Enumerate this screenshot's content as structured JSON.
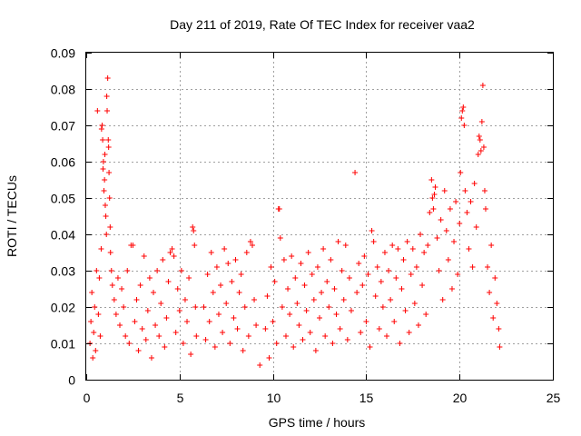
{
  "chart_data": {
    "type": "scatter",
    "title": "Day 211 of 2019, Rate Of TEC Index for receiver vaa2",
    "xlabel": "GPS time / hours",
    "ylabel": "ROTI / TECUs",
    "xlim": [
      0,
      25
    ],
    "ylim": [
      0,
      0.09
    ],
    "xticks": [
      0,
      5,
      10,
      15,
      20,
      25
    ],
    "xtick_labels": [
      "0",
      "5",
      "10",
      "15",
      "20",
      "25"
    ],
    "yticks": [
      0,
      0.01,
      0.02,
      0.03,
      0.04,
      0.05,
      0.06,
      0.07,
      0.08,
      0.09
    ],
    "ytick_labels": [
      "0",
      "0.01",
      "0.02",
      "0.03",
      "0.04",
      "0.05",
      "0.06",
      "0.07",
      "0.08",
      "0.09"
    ],
    "grid": true,
    "marker": "+",
    "color": "#ff0000",
    "series": [
      {
        "name": "ROTI",
        "points": [
          [
            0.2,
            0.01
          ],
          [
            0.25,
            0.016
          ],
          [
            0.3,
            0.024
          ],
          [
            0.35,
            0.006
          ],
          [
            0.4,
            0.013
          ],
          [
            0.45,
            0.02
          ],
          [
            0.5,
            0.008
          ],
          [
            0.55,
            0.03
          ],
          [
            0.6,
            0.074
          ],
          [
            0.65,
            0.018
          ],
          [
            0.7,
            0.028
          ],
          [
            0.75,
            0.012
          ],
          [
            0.8,
            0.036
          ],
          [
            0.82,
            0.069
          ],
          [
            0.85,
            0.07
          ],
          [
            0.88,
            0.066
          ],
          [
            0.9,
            0.058
          ],
          [
            0.92,
            0.06
          ],
          [
            0.95,
            0.052
          ],
          [
            0.98,
            0.055
          ],
          [
            1.0,
            0.062
          ],
          [
            1.02,
            0.048
          ],
          [
            1.05,
            0.045
          ],
          [
            1.08,
            0.04
          ],
          [
            1.1,
            0.078
          ],
          [
            1.12,
            0.074
          ],
          [
            1.15,
            0.083
          ],
          [
            1.18,
            0.066
          ],
          [
            1.2,
            0.064
          ],
          [
            1.22,
            0.057
          ],
          [
            1.25,
            0.05
          ],
          [
            1.28,
            0.042
          ],
          [
            1.3,
            0.035
          ],
          [
            1.35,
            0.03
          ],
          [
            1.4,
            0.026
          ],
          [
            1.5,
            0.022
          ],
          [
            1.6,
            0.018
          ],
          [
            1.7,
            0.028
          ],
          [
            1.8,
            0.015
          ],
          [
            1.9,
            0.025
          ],
          [
            2.0,
            0.02
          ],
          [
            2.1,
            0.012
          ],
          [
            2.2,
            0.03
          ],
          [
            2.3,
            0.01
          ],
          [
            2.4,
            0.037
          ],
          [
            2.5,
            0.037
          ],
          [
            2.6,
            0.016
          ],
          [
            2.7,
            0.022
          ],
          [
            2.8,
            0.008
          ],
          [
            2.9,
            0.026
          ],
          [
            3.0,
            0.014
          ],
          [
            3.1,
            0.034
          ],
          [
            3.2,
            0.011
          ],
          [
            3.3,
            0.019
          ],
          [
            3.4,
            0.028
          ],
          [
            3.5,
            0.006
          ],
          [
            3.6,
            0.024
          ],
          [
            3.7,
            0.015
          ],
          [
            3.8,
            0.03
          ],
          [
            3.9,
            0.012
          ],
          [
            4.0,
            0.021
          ],
          [
            4.1,
            0.033
          ],
          [
            4.2,
            0.009
          ],
          [
            4.3,
            0.017
          ],
          [
            4.4,
            0.027
          ],
          [
            4.5,
            0.035
          ],
          [
            4.6,
            0.036
          ],
          [
            4.7,
            0.034
          ],
          [
            4.8,
            0.013
          ],
          [
            4.9,
            0.025
          ],
          [
            5.0,
            0.019
          ],
          [
            5.1,
            0.03
          ],
          [
            5.2,
            0.01
          ],
          [
            5.3,
            0.022
          ],
          [
            5.4,
            0.016
          ],
          [
            5.5,
            0.028
          ],
          [
            5.6,
            0.007
          ],
          [
            5.7,
            0.042
          ],
          [
            5.75,
            0.041
          ],
          [
            5.8,
            0.037
          ],
          [
            5.85,
            0.02
          ],
          [
            5.9,
            0.012
          ],
          [
            6.3,
            0.02
          ],
          [
            6.4,
            0.011
          ],
          [
            6.5,
            0.029
          ],
          [
            6.6,
            0.016
          ],
          [
            6.7,
            0.035
          ],
          [
            6.8,
            0.024
          ],
          [
            6.9,
            0.009
          ],
          [
            7.0,
            0.031
          ],
          [
            7.1,
            0.018
          ],
          [
            7.2,
            0.026
          ],
          [
            7.3,
            0.013
          ],
          [
            7.4,
            0.036
          ],
          [
            7.5,
            0.021
          ],
          [
            7.6,
            0.032
          ],
          [
            7.7,
            0.01
          ],
          [
            7.8,
            0.027
          ],
          [
            7.9,
            0.017
          ],
          [
            8.0,
            0.033
          ],
          [
            8.1,
            0.014
          ],
          [
            8.2,
            0.024
          ],
          [
            8.3,
            0.029
          ],
          [
            8.4,
            0.008
          ],
          [
            8.5,
            0.02
          ],
          [
            8.6,
            0.035
          ],
          [
            8.7,
            0.012
          ],
          [
            8.8,
            0.038
          ],
          [
            8.9,
            0.037
          ],
          [
            9.0,
            0.022
          ],
          [
            9.1,
            0.015
          ],
          [
            9.3,
            0.004
          ],
          [
            9.6,
            0.014
          ],
          [
            9.7,
            0.023
          ],
          [
            9.8,
            0.006
          ],
          [
            9.9,
            0.031
          ],
          [
            10.0,
            0.016
          ],
          [
            10.1,
            0.027
          ],
          [
            10.2,
            0.01
          ],
          [
            10.3,
            0.047
          ],
          [
            10.35,
            0.047
          ],
          [
            10.4,
            0.039
          ],
          [
            10.5,
            0.02
          ],
          [
            10.6,
            0.033
          ],
          [
            10.7,
            0.012
          ],
          [
            10.8,
            0.025
          ],
          [
            10.9,
            0.018
          ],
          [
            11.0,
            0.034
          ],
          [
            11.1,
            0.009
          ],
          [
            11.2,
            0.028
          ],
          [
            11.3,
            0.021
          ],
          [
            11.4,
            0.015
          ],
          [
            11.5,
            0.032
          ],
          [
            11.6,
            0.011
          ],
          [
            11.7,
            0.026
          ],
          [
            11.8,
            0.019
          ],
          [
            11.9,
            0.035
          ],
          [
            12.0,
            0.013
          ],
          [
            12.1,
            0.029
          ],
          [
            12.2,
            0.022
          ],
          [
            12.3,
            0.008
          ],
          [
            12.4,
            0.031
          ],
          [
            12.5,
            0.017
          ],
          [
            12.6,
            0.024
          ],
          [
            12.7,
            0.036
          ],
          [
            12.8,
            0.012
          ],
          [
            12.9,
            0.027
          ],
          [
            13.0,
            0.02
          ],
          [
            13.1,
            0.033
          ],
          [
            13.2,
            0.01
          ],
          [
            13.3,
            0.025
          ],
          [
            13.4,
            0.018
          ],
          [
            13.5,
            0.038
          ],
          [
            13.6,
            0.014
          ],
          [
            13.7,
            0.03
          ],
          [
            13.8,
            0.022
          ],
          [
            13.9,
            0.037
          ],
          [
            14.0,
            0.011
          ],
          [
            14.1,
            0.028
          ],
          [
            14.2,
            0.019
          ],
          [
            14.4,
            0.057
          ],
          [
            14.5,
            0.024
          ],
          [
            14.6,
            0.032
          ],
          [
            14.7,
            0.013
          ],
          [
            14.8,
            0.026
          ],
          [
            14.9,
            0.034
          ],
          [
            15.0,
            0.016
          ],
          [
            15.1,
            0.029
          ],
          [
            15.2,
            0.009
          ],
          [
            15.3,
            0.041
          ],
          [
            15.4,
            0.038
          ],
          [
            15.5,
            0.023
          ],
          [
            15.6,
            0.031
          ],
          [
            15.7,
            0.014
          ],
          [
            15.8,
            0.027
          ],
          [
            15.9,
            0.02
          ],
          [
            16.0,
            0.035
          ],
          [
            16.1,
            0.012
          ],
          [
            16.2,
            0.03
          ],
          [
            16.3,
            0.022
          ],
          [
            16.4,
            0.037
          ],
          [
            16.5,
            0.016
          ],
          [
            16.6,
            0.028
          ],
          [
            16.7,
            0.036
          ],
          [
            16.8,
            0.01
          ],
          [
            16.9,
            0.025
          ],
          [
            17.0,
            0.033
          ],
          [
            17.1,
            0.019
          ],
          [
            17.2,
            0.038
          ],
          [
            17.3,
            0.013
          ],
          [
            17.4,
            0.029
          ],
          [
            17.5,
            0.036
          ],
          [
            17.6,
            0.021
          ],
          [
            17.7,
            0.031
          ],
          [
            17.8,
            0.015
          ],
          [
            17.9,
            0.04
          ],
          [
            18.0,
            0.026
          ],
          [
            18.1,
            0.035
          ],
          [
            18.2,
            0.018
          ],
          [
            18.3,
            0.037
          ],
          [
            18.4,
            0.046
          ],
          [
            18.5,
            0.055
          ],
          [
            18.55,
            0.05
          ],
          [
            18.6,
            0.047
          ],
          [
            18.65,
            0.051
          ],
          [
            18.7,
            0.053
          ],
          [
            18.8,
            0.039
          ],
          [
            18.9,
            0.03
          ],
          [
            19.0,
            0.044
          ],
          [
            19.1,
            0.022
          ],
          [
            19.2,
            0.052
          ],
          [
            19.3,
            0.041
          ],
          [
            19.4,
            0.033
          ],
          [
            19.5,
            0.047
          ],
          [
            19.6,
            0.025
          ],
          [
            19.7,
            0.038
          ],
          [
            19.8,
            0.049
          ],
          [
            19.9,
            0.029
          ],
          [
            20.0,
            0.043
          ],
          [
            20.05,
            0.057
          ],
          [
            20.1,
            0.072
          ],
          [
            20.15,
            0.074
          ],
          [
            20.2,
            0.075
          ],
          [
            20.25,
            0.07
          ],
          [
            20.3,
            0.052
          ],
          [
            20.4,
            0.046
          ],
          [
            20.5,
            0.036
          ],
          [
            20.6,
            0.049
          ],
          [
            20.7,
            0.031
          ],
          [
            20.8,
            0.054
          ],
          [
            20.9,
            0.042
          ],
          [
            21.0,
            0.062
          ],
          [
            21.05,
            0.067
          ],
          [
            21.1,
            0.066
          ],
          [
            21.15,
            0.063
          ],
          [
            21.2,
            0.071
          ],
          [
            21.25,
            0.081
          ],
          [
            21.3,
            0.064
          ],
          [
            21.35,
            0.052
          ],
          [
            21.4,
            0.047
          ],
          [
            21.5,
            0.031
          ],
          [
            21.6,
            0.024
          ],
          [
            21.7,
            0.037
          ],
          [
            21.8,
            0.017
          ],
          [
            21.9,
            0.028
          ],
          [
            22.0,
            0.021
          ],
          [
            22.1,
            0.014
          ],
          [
            22.15,
            0.009
          ]
        ]
      }
    ]
  }
}
